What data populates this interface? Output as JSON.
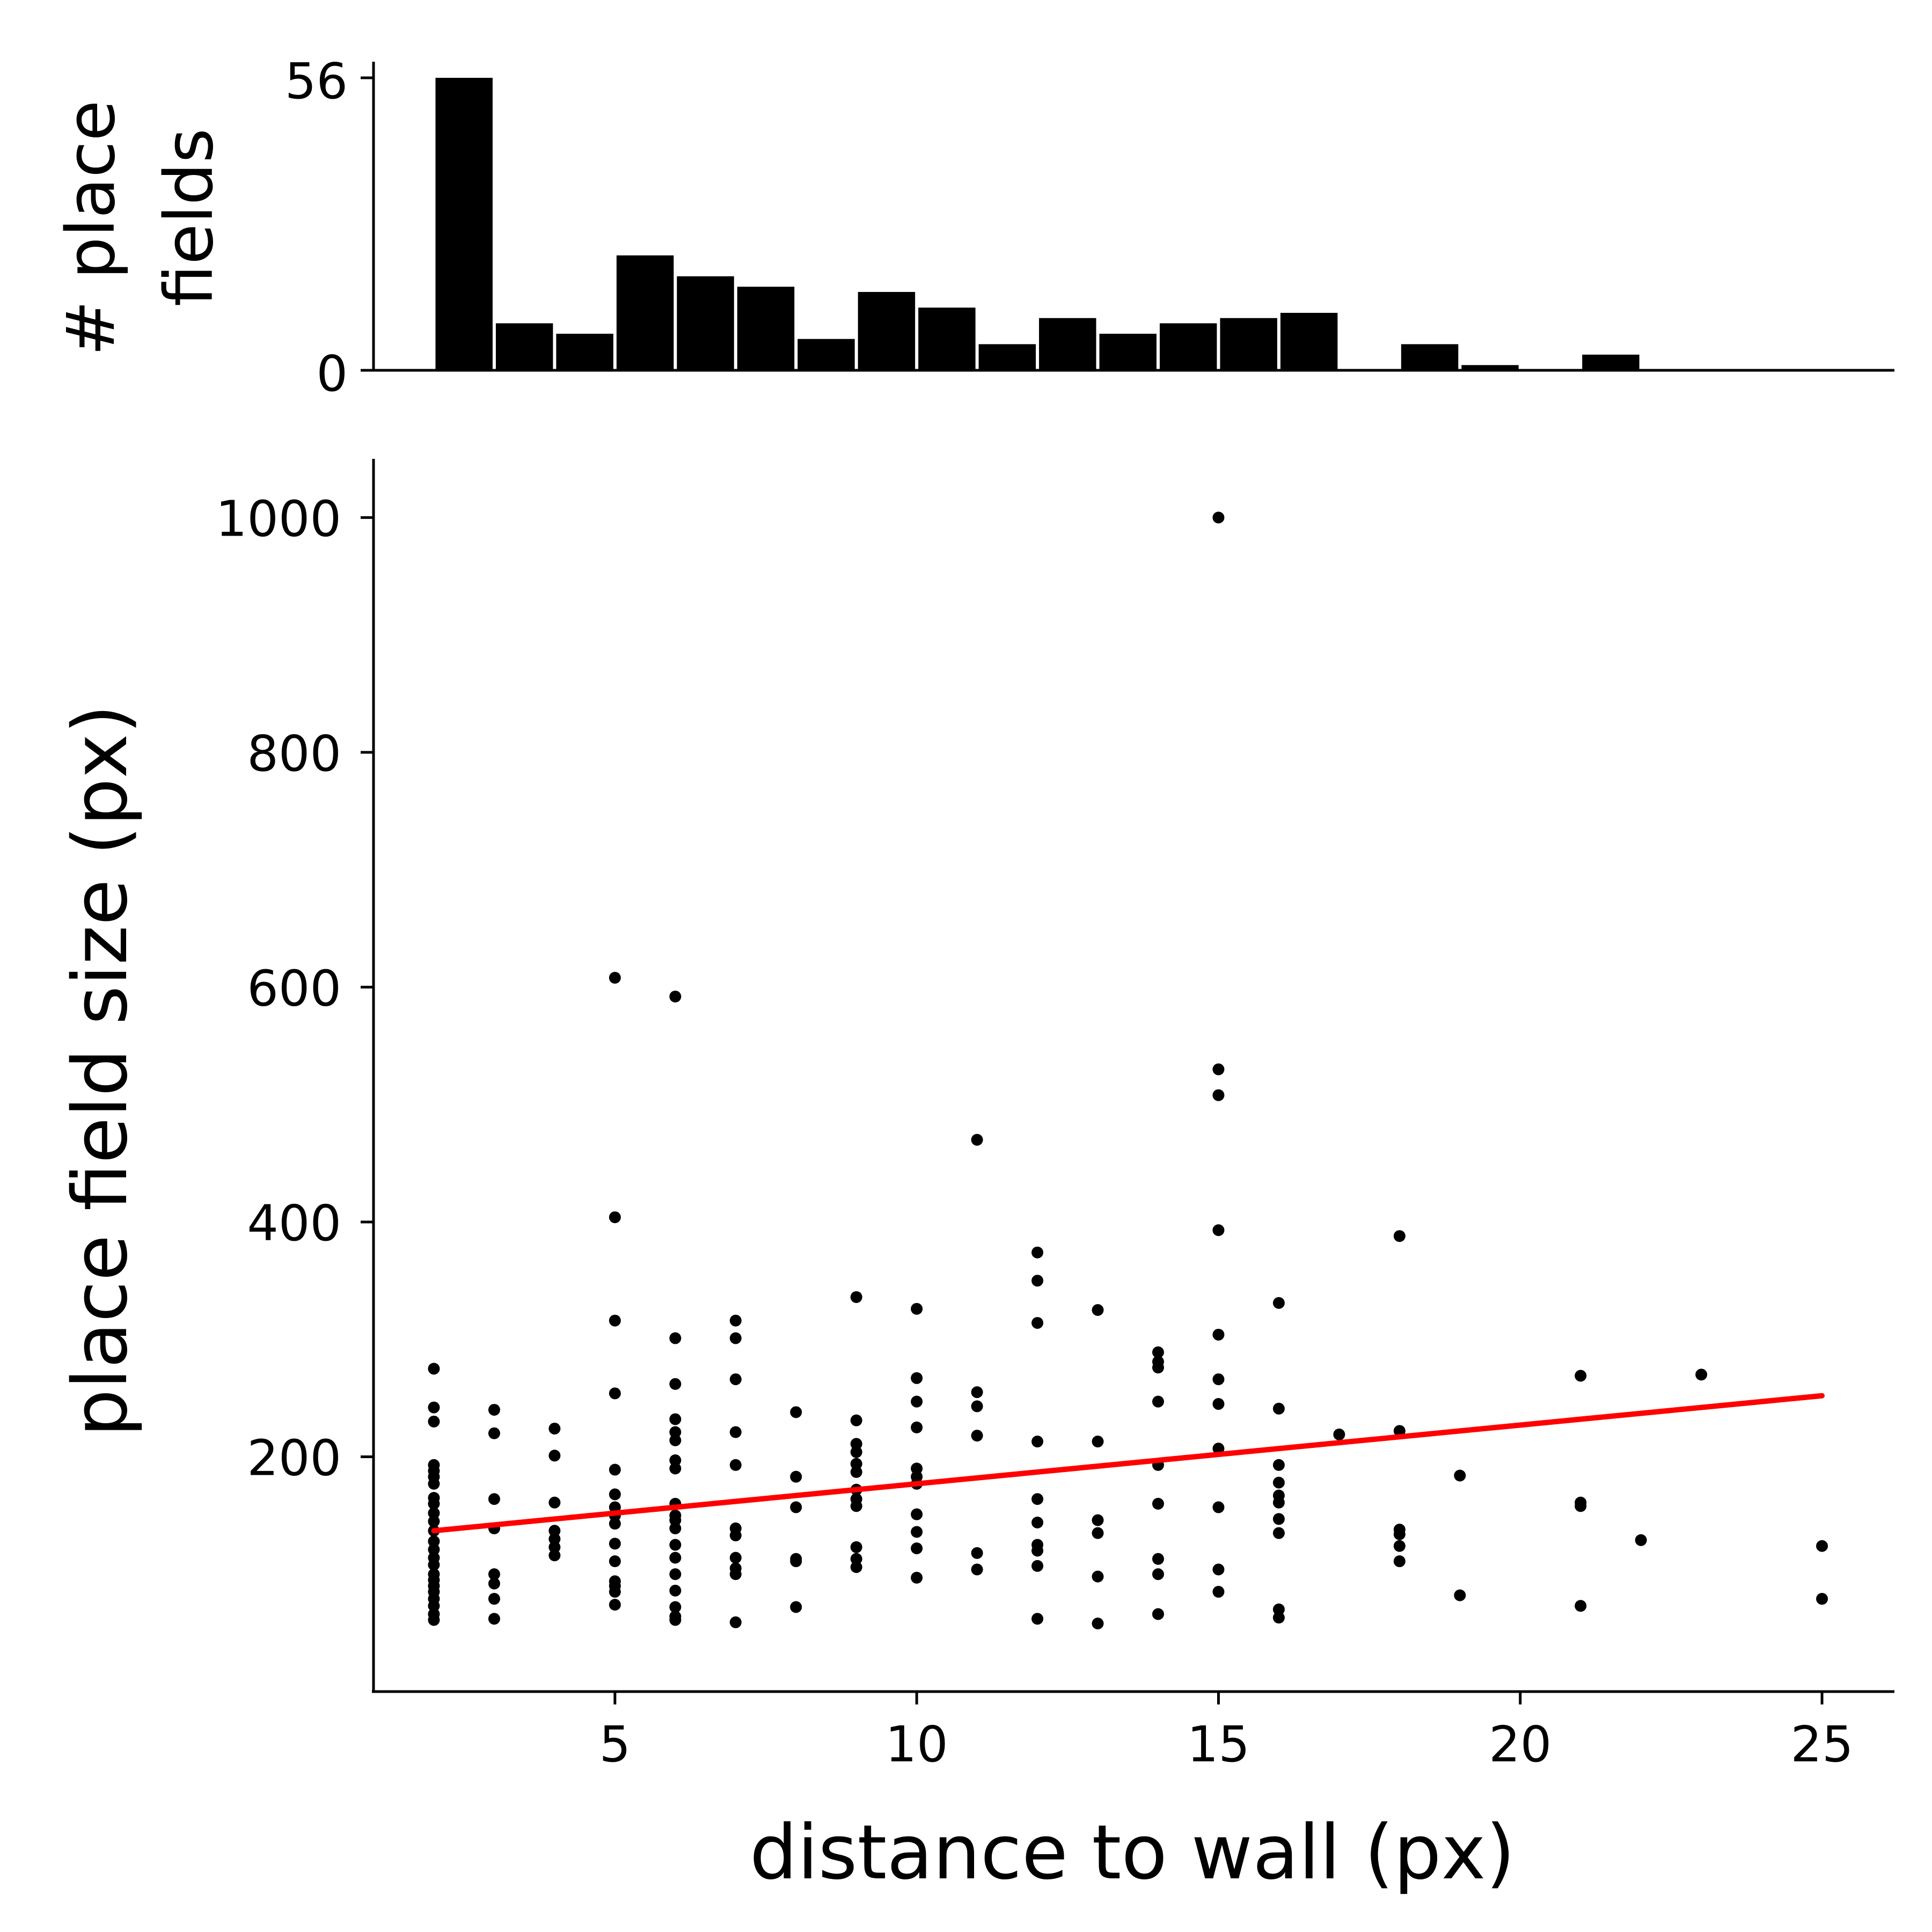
{
  "chart_data": [
    {
      "type": "bar",
      "panel": "top histogram",
      "ylabel_line1": "# place",
      "ylabel_line2": "fields",
      "yticks": [
        0,
        56
      ],
      "ylim": [
        0,
        56
      ],
      "xlim": [
        1,
        26
      ],
      "bin_edges": [
        2,
        3,
        4,
        5,
        6,
        7,
        8,
        9,
        10,
        11,
        12,
        13,
        14,
        15,
        16,
        17,
        18,
        19,
        20,
        21,
        22,
        23,
        24
      ],
      "values": [
        56,
        9,
        7,
        22,
        18,
        16,
        6,
        15,
        12,
        5,
        10,
        7,
        9,
        10,
        11,
        0,
        5,
        1,
        0,
        3,
        0,
        0
      ],
      "bar_color": "#000000"
    },
    {
      "type": "scatter",
      "panel": "bottom scatter",
      "xlabel": "distance to wall (px)",
      "ylabel": "place field size (px)",
      "xticks": [
        5,
        10,
        15,
        20,
        25
      ],
      "yticks": [
        200,
        400,
        600,
        800,
        1000
      ],
      "xlim": [
        1,
        26.2
      ],
      "ylim": [
        0,
        1050
      ],
      "point_color": "#000000",
      "points": [
        [
          2,
          275
        ],
        [
          2,
          242
        ],
        [
          2,
          230
        ],
        [
          2,
          193
        ],
        [
          2,
          188
        ],
        [
          2,
          183
        ],
        [
          2,
          177
        ],
        [
          2,
          165
        ],
        [
          2,
          160
        ],
        [
          2,
          152
        ],
        [
          2,
          145
        ],
        [
          2,
          137
        ],
        [
          2,
          128
        ],
        [
          2,
          121
        ],
        [
          2,
          114
        ],
        [
          2,
          108
        ],
        [
          2,
          100
        ],
        [
          2,
          95
        ],
        [
          2,
          90
        ],
        [
          2,
          85
        ],
        [
          2,
          79
        ],
        [
          2,
          73
        ],
        [
          2,
          66
        ],
        [
          2,
          61
        ],
        [
          3,
          240
        ],
        [
          3,
          220
        ],
        [
          3,
          164
        ],
        [
          3,
          139
        ],
        [
          3,
          100
        ],
        [
          3,
          92
        ],
        [
          3,
          79
        ],
        [
          3,
          62
        ],
        [
          4,
          224
        ],
        [
          4,
          201
        ],
        [
          4,
          161
        ],
        [
          4,
          137
        ],
        [
          4,
          130
        ],
        [
          4,
          123
        ],
        [
          4,
          116
        ],
        [
          5,
          608
        ],
        [
          5,
          404
        ],
        [
          5,
          316
        ],
        [
          5,
          254
        ],
        [
          5,
          189
        ],
        [
          5,
          168
        ],
        [
          5,
          157
        ],
        [
          5,
          150
        ],
        [
          5,
          143
        ],
        [
          5,
          126
        ],
        [
          5,
          111
        ],
        [
          5,
          94
        ],
        [
          5,
          90
        ],
        [
          5,
          85
        ],
        [
          5,
          74
        ],
        [
          6,
          592
        ],
        [
          6,
          301
        ],
        [
          6,
          262
        ],
        [
          6,
          232
        ],
        [
          6,
          221
        ],
        [
          6,
          214
        ],
        [
          6,
          197
        ],
        [
          6,
          190
        ],
        [
          6,
          160
        ],
        [
          6,
          150
        ],
        [
          6,
          146
        ],
        [
          6,
          139
        ],
        [
          6,
          125
        ],
        [
          6,
          114
        ],
        [
          6,
          100
        ],
        [
          6,
          86
        ],
        [
          6,
          72
        ],
        [
          6,
          64
        ],
        [
          6,
          61
        ],
        [
          7,
          316
        ],
        [
          7,
          301
        ],
        [
          7,
          266
        ],
        [
          7,
          221
        ],
        [
          7,
          193
        ],
        [
          7,
          139
        ],
        [
          7,
          133
        ],
        [
          7,
          114
        ],
        [
          7,
          105
        ],
        [
          7,
          100
        ],
        [
          7,
          59
        ],
        [
          8,
          238
        ],
        [
          8,
          183
        ],
        [
          8,
          157
        ],
        [
          8,
          113
        ],
        [
          8,
          111
        ],
        [
          8,
          72
        ],
        [
          9,
          336
        ],
        [
          9,
          231
        ],
        [
          9,
          211
        ],
        [
          9,
          204
        ],
        [
          9,
          194
        ],
        [
          9,
          187
        ],
        [
          9,
          172
        ],
        [
          9,
          164
        ],
        [
          9,
          158
        ],
        [
          9,
          123
        ],
        [
          9,
          113
        ],
        [
          9,
          106
        ],
        [
          10,
          326
        ],
        [
          10,
          267
        ],
        [
          10,
          247
        ],
        [
          10,
          225
        ],
        [
          10,
          190
        ],
        [
          10,
          183
        ],
        [
          10,
          177
        ],
        [
          10,
          151
        ],
        [
          10,
          136
        ],
        [
          10,
          122
        ],
        [
          10,
          97
        ],
        [
          11,
          470
        ],
        [
          11,
          255
        ],
        [
          11,
          243
        ],
        [
          11,
          218
        ],
        [
          11,
          118
        ],
        [
          11,
          104
        ],
        [
          12,
          374
        ],
        [
          12,
          350
        ],
        [
          12,
          314
        ],
        [
          12,
          213
        ],
        [
          12,
          164
        ],
        [
          12,
          144
        ],
        [
          12,
          125
        ],
        [
          12,
          120
        ],
        [
          12,
          107
        ],
        [
          12,
          62
        ],
        [
          13,
          325
        ],
        [
          13,
          213
        ],
        [
          13,
          146
        ],
        [
          13,
          135
        ],
        [
          13,
          98
        ],
        [
          13,
          58
        ],
        [
          14,
          289
        ],
        [
          14,
          281
        ],
        [
          14,
          276
        ],
        [
          14,
          247
        ],
        [
          14,
          193
        ],
        [
          14,
          160
        ],
        [
          14,
          113
        ],
        [
          14,
          100
        ],
        [
          14,
          66
        ],
        [
          15,
          1000
        ],
        [
          15,
          530
        ],
        [
          15,
          508
        ],
        [
          15,
          393
        ],
        [
          15,
          304
        ],
        [
          15,
          266
        ],
        [
          15,
          245
        ],
        [
          15,
          207
        ],
        [
          15,
          157
        ],
        [
          15,
          104
        ],
        [
          15,
          85
        ],
        [
          16,
          331
        ],
        [
          16,
          241
        ],
        [
          16,
          193
        ],
        [
          16,
          178
        ],
        [
          16,
          167
        ],
        [
          16,
          161
        ],
        [
          16,
          147
        ],
        [
          16,
          135
        ],
        [
          16,
          70
        ],
        [
          16,
          63
        ],
        [
          17,
          219
        ],
        [
          18,
          388
        ],
        [
          18,
          222
        ],
        [
          18,
          138
        ],
        [
          18,
          134
        ],
        [
          18,
          124
        ],
        [
          18,
          111
        ],
        [
          19,
          184
        ],
        [
          19,
          82
        ],
        [
          21,
          269
        ],
        [
          21,
          161
        ],
        [
          21,
          158
        ],
        [
          21,
          73
        ],
        [
          22,
          129
        ],
        [
          23,
          270
        ],
        [
          25,
          124
        ],
        [
          25,
          79
        ]
      ],
      "fit_line": {
        "x": [
          2,
          25
        ],
        "y": [
          137,
          252
        ],
        "color": "#ff0000"
      }
    }
  ]
}
